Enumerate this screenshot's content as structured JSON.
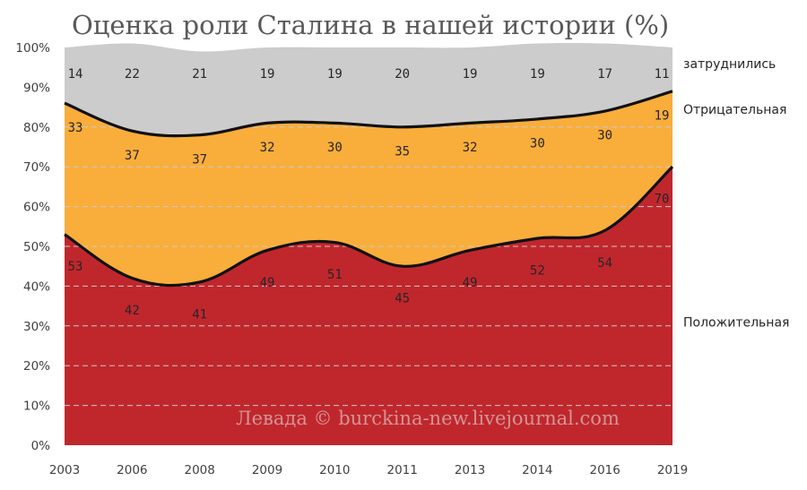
{
  "chart_data": {
    "type": "area",
    "title": "Оценка роли Сталина в нашей истории (%)",
    "categories": [
      "2003",
      "2006",
      "2008",
      "2009",
      "2010",
      "2011",
      "2013",
      "2014",
      "2016",
      "2019"
    ],
    "stacked": true,
    "ylim": [
      0,
      100
    ],
    "y_ticks": [
      "0%",
      "10%",
      "20%",
      "30%",
      "40%",
      "50%",
      "60%",
      "70%",
      "80%",
      "90%",
      "100%"
    ],
    "grid": true,
    "legend_position": "right",
    "series": [
      {
        "name": "Положительная",
        "color": "#c0272d",
        "values": [
          53,
          42,
          41,
          49,
          51,
          45,
          49,
          52,
          54,
          70
        ]
      },
      {
        "name": "Отрицательная",
        "color": "#f9ad3b",
        "values": [
          33,
          37,
          37,
          32,
          30,
          35,
          32,
          30,
          30,
          19
        ]
      },
      {
        "name": "затруднились",
        "color": "#cccccc",
        "values": [
          14,
          22,
          21,
          19,
          19,
          20,
          19,
          19,
          17,
          11
        ]
      }
    ],
    "watermark": "Левада © burckina-new.livejournal.com"
  }
}
